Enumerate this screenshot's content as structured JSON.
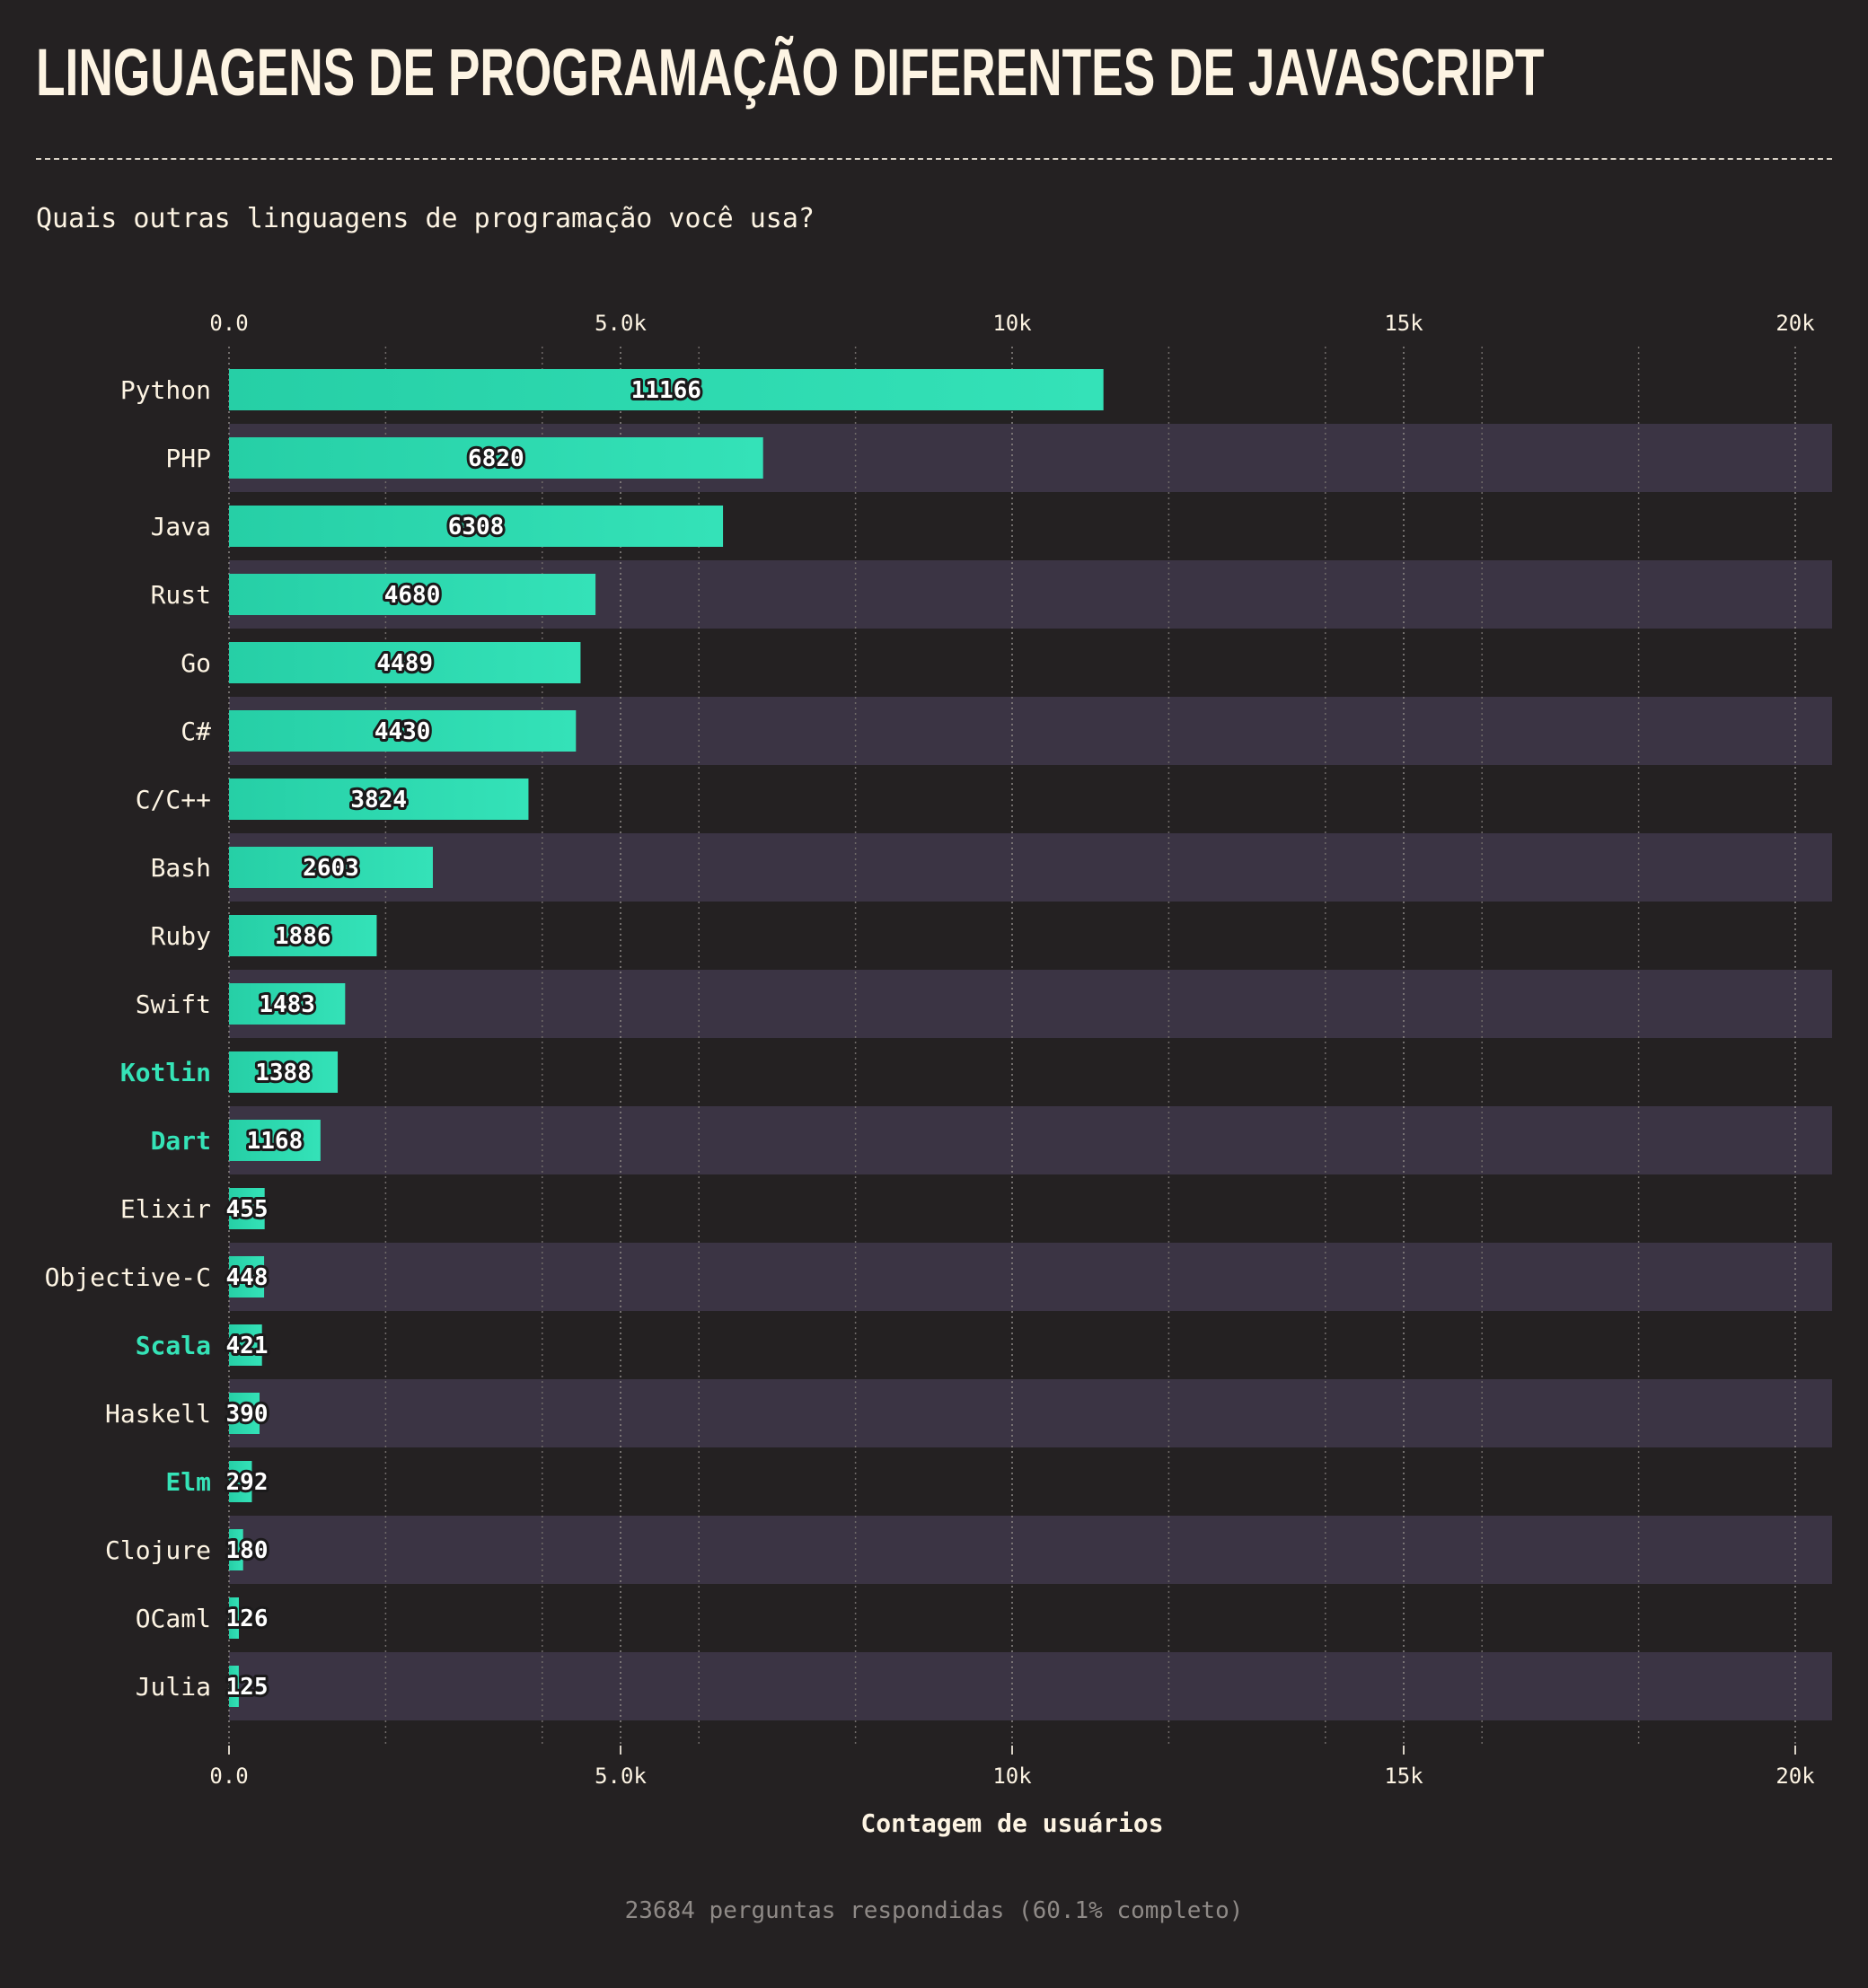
{
  "title": "LINGUAGENS DE PROGRAMAÇÃO DIFERENTES DE JAVASCRIPT",
  "question": "Quais outras linguagens de programação você usa?",
  "footer": "23684 perguntas respondidas (60.1% completo)",
  "colors": {
    "background": "#242122",
    "stripe": "#3b3444",
    "bar": "#2fd9b0",
    "highlight": "#35e3b7",
    "text": "#fdf4e3"
  },
  "chart_data": {
    "type": "bar",
    "orientation": "horizontal",
    "categories": [
      "Python",
      "PHP",
      "Java",
      "Rust",
      "Go",
      "C#",
      "C/C++",
      "Bash",
      "Ruby",
      "Swift",
      "Kotlin",
      "Dart",
      "Elixir",
      "Objective-C",
      "Scala",
      "Haskell",
      "Elm",
      "Clojure",
      "OCaml",
      "Julia"
    ],
    "values": [
      11166,
      6820,
      6308,
      4680,
      4489,
      4430,
      3824,
      2603,
      1886,
      1483,
      1388,
      1168,
      455,
      448,
      421,
      390,
      292,
      180,
      126,
      125
    ],
    "highlighted": [
      "Kotlin",
      "Dart",
      "Scala",
      "Elm"
    ],
    "xlabel": "Contagem de usuários",
    "ylabel": "",
    "xlim": [
      0,
      20500
    ],
    "xticks": [
      0,
      5000,
      10000,
      15000,
      20000
    ],
    "xtick_labels": [
      "0.0",
      "5.0k",
      "10k",
      "15k",
      "20k"
    ],
    "minor_gridlines": [
      2000,
      4000,
      6000,
      8000,
      12000,
      14000,
      16000,
      18000
    ],
    "grid": true,
    "tick_labels_top_and_bottom": true,
    "legend": "none"
  }
}
